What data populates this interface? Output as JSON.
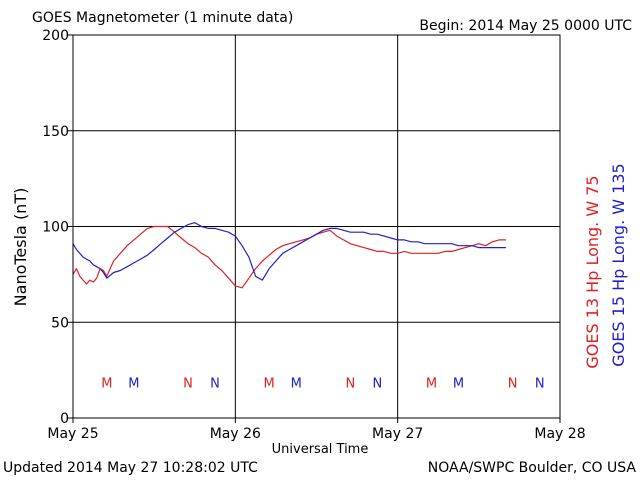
{
  "header": {
    "title": "GOES Magnetometer (1 minute data)",
    "begin": "Begin:  2014 May 25 0000 UTC"
  },
  "footer": {
    "updated": "Updated 2014 May 27 10:28:02 UTC",
    "credit": "NOAA/SWPC Boulder, CO USA"
  },
  "chart_data": {
    "type": "line",
    "ylabel": "NanoTesla (nT)",
    "xlabel": "Universal Time",
    "ylim": [
      0,
      200
    ],
    "yticks": [
      0,
      50,
      100,
      150,
      200
    ],
    "xlim": [
      0,
      72
    ],
    "xticks": [
      {
        "hour": 0,
        "label": "May 25"
      },
      {
        "hour": 24,
        "label": "May 26"
      },
      {
        "hour": 48,
        "label": "May 27"
      },
      {
        "hour": 72,
        "label": "May 28"
      }
    ],
    "grid": true,
    "colors": {
      "goes13": "#e02020",
      "goes15": "#2020c8"
    },
    "series": [
      {
        "name": "GOES 13 Hp Long. W 75",
        "color": "#e02020",
        "x": [
          0,
          0.5,
          1,
          1.5,
          2,
          2.5,
          3,
          3.5,
          4,
          4.5,
          5,
          6,
          7,
          8,
          9,
          10,
          11,
          12,
          13,
          14,
          15,
          16,
          17,
          18,
          19,
          20,
          21,
          22,
          23,
          24,
          25,
          26,
          27,
          28,
          29,
          30,
          31,
          32,
          33,
          34,
          35,
          36,
          37,
          38,
          39,
          40,
          41,
          42,
          43,
          44,
          45,
          46,
          47,
          48,
          49,
          50,
          51,
          52,
          53,
          54,
          55,
          56,
          57,
          58,
          59,
          60,
          61,
          62,
          63,
          64
        ],
        "y": [
          75,
          78,
          74,
          72,
          70,
          72,
          71,
          73,
          78,
          77,
          74,
          82,
          86,
          90,
          93,
          96,
          99,
          100,
          100,
          100,
          97,
          94,
          91,
          89,
          86,
          84,
          80,
          77,
          73,
          69,
          68,
          73,
          78,
          82,
          85,
          88,
          90,
          91,
          92,
          93,
          94,
          96,
          97,
          98,
          95,
          93,
          91,
          90,
          89,
          88,
          87,
          87,
          86,
          86,
          87,
          86,
          86,
          86,
          86,
          86,
          87,
          87,
          88,
          89,
          90,
          91,
          90,
          92,
          93,
          93
        ]
      },
      {
        "name": "GOES 15 Hp Long. W 135",
        "color": "#2020c8",
        "x": [
          0,
          0.5,
          1,
          1.5,
          2,
          2.5,
          3,
          3.5,
          4,
          4.5,
          5,
          6,
          7,
          8,
          9,
          10,
          11,
          12,
          13,
          14,
          15,
          16,
          17,
          18,
          19,
          20,
          21,
          22,
          23,
          24,
          25,
          26,
          27,
          28,
          29,
          30,
          31,
          32,
          33,
          34,
          35,
          36,
          37,
          38,
          39,
          40,
          41,
          42,
          43,
          44,
          45,
          46,
          47,
          48,
          49,
          50,
          51,
          52,
          53,
          54,
          55,
          56,
          57,
          58,
          59,
          60,
          61,
          62,
          63,
          64
        ],
        "y": [
          91,
          88,
          86,
          84,
          83,
          82,
          80,
          79,
          78,
          76,
          73,
          76,
          77,
          79,
          81,
          83,
          85,
          88,
          91,
          94,
          97,
          99,
          101,
          102,
          100,
          99,
          99,
          98,
          97,
          95,
          90,
          84,
          74,
          72,
          78,
          82,
          86,
          88,
          90,
          92,
          94,
          96,
          98,
          99,
          99,
          98,
          97,
          97,
          97,
          96,
          96,
          95,
          94,
          93,
          93,
          92,
          92,
          91,
          91,
          91,
          91,
          91,
          90,
          90,
          90,
          89,
          89,
          89,
          89,
          89
        ]
      }
    ],
    "markers": [
      {
        "hour": 5,
        "label": "M",
        "color": "#e02020"
      },
      {
        "hour": 9,
        "label": "M",
        "color": "#2020c8"
      },
      {
        "hour": 17,
        "label": "N",
        "color": "#e02020"
      },
      {
        "hour": 21,
        "label": "N",
        "color": "#2020c8"
      },
      {
        "hour": 29,
        "label": "M",
        "color": "#e02020"
      },
      {
        "hour": 33,
        "label": "M",
        "color": "#2020c8"
      },
      {
        "hour": 41,
        "label": "N",
        "color": "#e02020"
      },
      {
        "hour": 45,
        "label": "N",
        "color": "#2020c8"
      },
      {
        "hour": 53,
        "label": "M",
        "color": "#e02020"
      },
      {
        "hour": 57,
        "label": "M",
        "color": "#2020c8"
      },
      {
        "hour": 65,
        "label": "N",
        "color": "#e02020"
      },
      {
        "hour": 69,
        "label": "N",
        "color": "#2020c8"
      }
    ]
  }
}
